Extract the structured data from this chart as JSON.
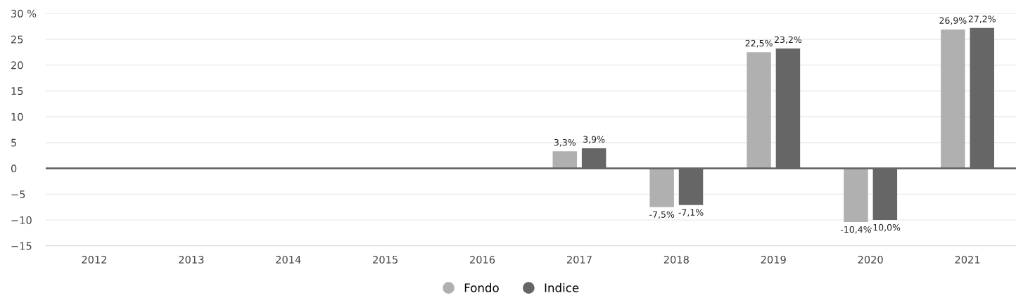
{
  "chart_data": {
    "type": "bar",
    "categories": [
      "2012",
      "2013",
      "2014",
      "2015",
      "2016",
      "2017",
      "2018",
      "2019",
      "2020",
      "2021"
    ],
    "series": [
      {
        "name": "Fondo",
        "color": "#b0b0b0",
        "values": [
          null,
          null,
          null,
          null,
          null,
          3.3,
          -7.5,
          22.5,
          -10.4,
          26.9
        ],
        "value_labels": [
          null,
          null,
          null,
          null,
          null,
          "3,3%",
          "-7,5%",
          "22,5%",
          "-10,4%",
          "26,9%"
        ]
      },
      {
        "name": "Indice",
        "color": "#666666",
        "values": [
          null,
          null,
          null,
          null,
          null,
          3.9,
          -7.1,
          23.2,
          -10.0,
          27.2
        ],
        "value_labels": [
          null,
          null,
          null,
          null,
          null,
          "3,9%",
          "-7,1%",
          "23,2%",
          "-10,0%",
          "27,2%"
        ]
      }
    ],
    "ylim": [
      -15,
      30
    ],
    "yticks": [
      {
        "value": -15,
        "label": "−15"
      },
      {
        "value": -10,
        "label": "−10"
      },
      {
        "value": -5,
        "label": "−5"
      },
      0,
      5,
      10,
      15,
      20,
      25,
      {
        "value": 30,
        "label": "30 %"
      }
    ],
    "ref_lines": [
      {
        "axis": "y",
        "value": 0,
        "color": "#666666"
      }
    ],
    "grid": "y",
    "legend": "bottom",
    "marker": "circle"
  }
}
